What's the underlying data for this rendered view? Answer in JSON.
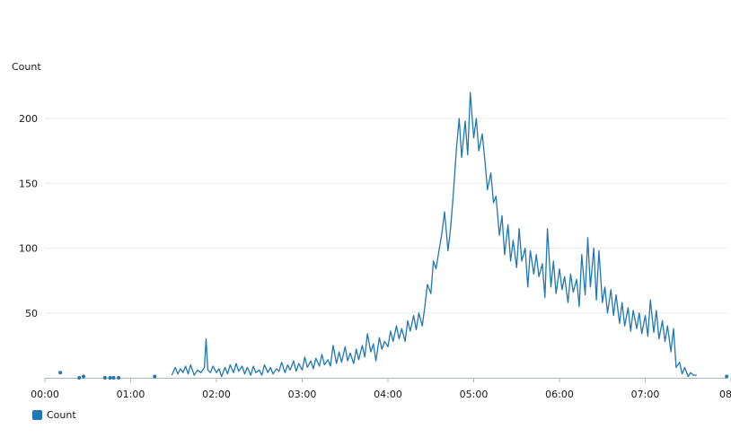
{
  "chart_data": {
    "type": "line",
    "ylabel": "Count",
    "x_ticks": [
      "00:00",
      "01:00",
      "02:00",
      "03:00",
      "04:00",
      "05:00",
      "06:00",
      "07:00",
      "08"
    ],
    "y_ticks": [
      50,
      100,
      150,
      200
    ],
    "ylim": [
      0,
      220
    ],
    "xlim_hours": [
      0,
      8
    ],
    "grid": true,
    "legend_position": "bottom-left",
    "series": [
      {
        "name": "Count",
        "color": "#1f77b4",
        "isolated_points": [
          [
            0.18,
            4
          ],
          [
            0.4,
            0
          ],
          [
            0.45,
            1
          ],
          [
            0.7,
            0
          ],
          [
            0.76,
            0
          ],
          [
            0.8,
            0
          ],
          [
            0.86,
            0
          ],
          [
            1.28,
            1
          ]
        ],
        "points": [
          [
            1.48,
            2
          ],
          [
            1.52,
            8
          ],
          [
            1.55,
            3
          ],
          [
            1.58,
            7
          ],
          [
            1.61,
            4
          ],
          [
            1.64,
            9
          ],
          [
            1.67,
            3
          ],
          [
            1.7,
            10
          ],
          [
            1.74,
            2
          ],
          [
            1.78,
            6
          ],
          [
            1.82,
            4
          ],
          [
            1.86,
            8
          ],
          [
            1.88,
            30
          ],
          [
            1.9,
            6
          ],
          [
            1.93,
            4
          ],
          [
            1.96,
            9
          ],
          [
            2.0,
            4
          ],
          [
            2.03,
            7
          ],
          [
            2.06,
            1
          ],
          [
            2.1,
            8
          ],
          [
            2.13,
            3
          ],
          [
            2.16,
            10
          ],
          [
            2.2,
            4
          ],
          [
            2.23,
            11
          ],
          [
            2.26,
            5
          ],
          [
            2.3,
            9
          ],
          [
            2.33,
            3
          ],
          [
            2.36,
            8
          ],
          [
            2.4,
            2
          ],
          [
            2.43,
            9
          ],
          [
            2.46,
            4
          ],
          [
            2.5,
            6
          ],
          [
            2.53,
            2
          ],
          [
            2.56,
            10
          ],
          [
            2.6,
            4
          ],
          [
            2.63,
            8
          ],
          [
            2.66,
            3
          ],
          [
            2.7,
            7
          ],
          [
            2.73,
            5
          ],
          [
            2.76,
            12
          ],
          [
            2.8,
            4
          ],
          [
            2.83,
            10
          ],
          [
            2.86,
            6
          ],
          [
            2.9,
            13
          ],
          [
            2.93,
            5
          ],
          [
            2.96,
            11
          ],
          [
            3.0,
            6
          ],
          [
            3.03,
            16
          ],
          [
            3.06,
            8
          ],
          [
            3.1,
            13
          ],
          [
            3.13,
            7
          ],
          [
            3.16,
            15
          ],
          [
            3.2,
            9
          ],
          [
            3.23,
            18
          ],
          [
            3.26,
            10
          ],
          [
            3.3,
            14
          ],
          [
            3.33,
            9
          ],
          [
            3.36,
            25
          ],
          [
            3.4,
            11
          ],
          [
            3.43,
            20
          ],
          [
            3.46,
            12
          ],
          [
            3.5,
            24
          ],
          [
            3.53,
            13
          ],
          [
            3.56,
            19
          ],
          [
            3.6,
            11
          ],
          [
            3.63,
            22
          ],
          [
            3.66,
            14
          ],
          [
            3.7,
            25
          ],
          [
            3.73,
            16
          ],
          [
            3.76,
            34
          ],
          [
            3.8,
            20
          ],
          [
            3.83,
            26
          ],
          [
            3.86,
            13
          ],
          [
            3.9,
            31
          ],
          [
            3.93,
            22
          ],
          [
            3.96,
            28
          ],
          [
            4.0,
            24
          ],
          [
            4.03,
            36
          ],
          [
            4.06,
            28
          ],
          [
            4.1,
            40
          ],
          [
            4.13,
            30
          ],
          [
            4.16,
            38
          ],
          [
            4.2,
            28
          ],
          [
            4.23,
            44
          ],
          [
            4.26,
            36
          ],
          [
            4.3,
            48
          ],
          [
            4.33,
            37
          ],
          [
            4.36,
            50
          ],
          [
            4.4,
            40
          ],
          [
            4.43,
            55
          ],
          [
            4.46,
            72
          ],
          [
            4.5,
            65
          ],
          [
            4.53,
            90
          ],
          [
            4.56,
            84
          ],
          [
            4.6,
            100
          ],
          [
            4.63,
            112
          ],
          [
            4.66,
            128
          ],
          [
            4.7,
            98
          ],
          [
            4.73,
            115
          ],
          [
            4.76,
            140
          ],
          [
            4.8,
            178
          ],
          [
            4.83,
            200
          ],
          [
            4.86,
            170
          ],
          [
            4.9,
            198
          ],
          [
            4.93,
            172
          ],
          [
            4.96,
            220
          ],
          [
            5.0,
            185
          ],
          [
            5.03,
            200
          ],
          [
            5.06,
            175
          ],
          [
            5.1,
            188
          ],
          [
            5.13,
            168
          ],
          [
            5.16,
            145
          ],
          [
            5.2,
            158
          ],
          [
            5.23,
            135
          ],
          [
            5.26,
            140
          ],
          [
            5.3,
            110
          ],
          [
            5.33,
            125
          ],
          [
            5.36,
            95
          ],
          [
            5.4,
            118
          ],
          [
            5.43,
            90
          ],
          [
            5.46,
            106
          ],
          [
            5.5,
            85
          ],
          [
            5.53,
            115
          ],
          [
            5.56,
            90
          ],
          [
            5.6,
            100
          ],
          [
            5.63,
            70
          ],
          [
            5.66,
            98
          ],
          [
            5.7,
            80
          ],
          [
            5.73,
            95
          ],
          [
            5.76,
            78
          ],
          [
            5.8,
            88
          ],
          [
            5.83,
            62
          ],
          [
            5.86,
            115
          ],
          [
            5.9,
            70
          ],
          [
            5.93,
            90
          ],
          [
            5.96,
            65
          ],
          [
            6.0,
            84
          ],
          [
            6.03,
            68
          ],
          [
            6.06,
            78
          ],
          [
            6.1,
            58
          ],
          [
            6.13,
            80
          ],
          [
            6.16,
            66
          ],
          [
            6.2,
            76
          ],
          [
            6.23,
            55
          ],
          [
            6.26,
            95
          ],
          [
            6.3,
            64
          ],
          [
            6.33,
            108
          ],
          [
            6.36,
            70
          ],
          [
            6.4,
            100
          ],
          [
            6.43,
            60
          ],
          [
            6.46,
            98
          ],
          [
            6.5,
            58
          ],
          [
            6.53,
            70
          ],
          [
            6.56,
            50
          ],
          [
            6.6,
            68
          ],
          [
            6.63,
            48
          ],
          [
            6.66,
            64
          ],
          [
            6.7,
            42
          ],
          [
            6.73,
            58
          ],
          [
            6.76,
            40
          ],
          [
            6.8,
            54
          ],
          [
            6.83,
            36
          ],
          [
            6.86,
            52
          ],
          [
            6.9,
            38
          ],
          [
            6.93,
            50
          ],
          [
            6.96,
            34
          ],
          [
            7.0,
            48
          ],
          [
            7.03,
            32
          ],
          [
            7.06,
            60
          ],
          [
            7.1,
            35
          ],
          [
            7.13,
            52
          ],
          [
            7.16,
            30
          ],
          [
            7.2,
            44
          ],
          [
            7.23,
            28
          ],
          [
            7.26,
            40
          ],
          [
            7.3,
            20
          ],
          [
            7.33,
            38
          ],
          [
            7.36,
            8
          ],
          [
            7.4,
            12
          ],
          [
            7.43,
            3
          ],
          [
            7.46,
            8
          ],
          [
            7.5,
            1
          ],
          [
            7.53,
            4
          ],
          [
            7.56,
            2
          ],
          [
            7.6,
            2
          ]
        ]
      }
    ]
  }
}
